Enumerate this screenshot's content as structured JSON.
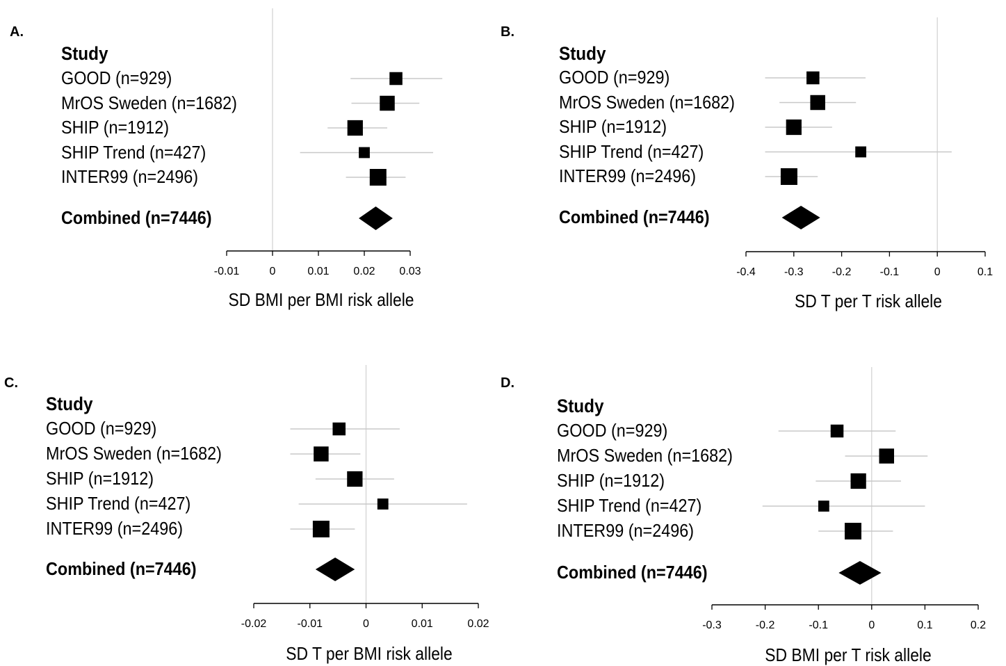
{
  "chart_data": [
    {
      "type": "forest",
      "panel_letter": "A.",
      "study_header": "Study",
      "xlabel": "SD BMI per BMI risk allele",
      "xlim": [
        -0.01,
        0.03
      ],
      "ticks": [
        -0.01,
        0,
        0.01,
        0.02,
        0.03
      ],
      "tick_labels": [
        "-0.01",
        "0",
        "0.01",
        "0.02",
        "0.03"
      ],
      "studies": [
        {
          "label": "GOOD (n=929)",
          "estimate": 0.0269,
          "ci": [
            0.017,
            0.037
          ],
          "n": 929
        },
        {
          "label": "MrOS Sweden (n=1682)",
          "estimate": 0.025,
          "ci": [
            0.0172,
            0.032
          ],
          "n": 1682
        },
        {
          "label": "SHIP (n=1912)",
          "estimate": 0.018,
          "ci": [
            0.012,
            0.025
          ],
          "n": 1912
        },
        {
          "label": "SHIP Trend (n=427)",
          "estimate": 0.02,
          "ci": [
            0.006,
            0.035
          ],
          "n": 427
        },
        {
          "label": "INTER99 (n=2496)",
          "estimate": 0.023,
          "ci": [
            0.016,
            0.029
          ],
          "n": 2496
        }
      ],
      "combined": {
        "label": "Combined (n=7446)",
        "estimate": 0.0225,
        "ci": [
          0.0188,
          0.0262
        ]
      }
    },
    {
      "type": "forest",
      "panel_letter": "B.",
      "study_header": "Study",
      "xlabel": "SD T per T risk allele",
      "xlim": [
        -0.4,
        0.1
      ],
      "ticks": [
        -0.4,
        -0.3,
        -0.2,
        -0.1,
        0,
        0.1
      ],
      "tick_labels": [
        "-0.4",
        "-0.3",
        "-0.2",
        "-0.1",
        "0",
        "0.1"
      ],
      "studies": [
        {
          "label": "GOOD (n=929)",
          "estimate": -0.26,
          "ci": [
            -0.36,
            -0.15
          ],
          "n": 929
        },
        {
          "label": "MrOS Sweden (n=1682)",
          "estimate": -0.25,
          "ci": [
            -0.33,
            -0.17
          ],
          "n": 1682
        },
        {
          "label": "SHIP (n=1912)",
          "estimate": -0.3,
          "ci": [
            -0.36,
            -0.22
          ],
          "n": 1912
        },
        {
          "label": "SHIP Trend (n=427)",
          "estimate": -0.16,
          "ci": [
            -0.36,
            0.03
          ],
          "n": 427
        },
        {
          "label": "INTER99 (n=2496)",
          "estimate": -0.31,
          "ci": [
            -0.36,
            -0.25
          ],
          "n": 2496
        }
      ],
      "combined": {
        "label": "Combined (n=7446)",
        "estimate": -0.285,
        "ci": [
          -0.325,
          -0.245
        ]
      }
    },
    {
      "type": "forest",
      "panel_letter": "C.",
      "study_header": "Study",
      "xlabel": "SD T per BMI risk allele",
      "xlim": [
        -0.02,
        0.02
      ],
      "ticks": [
        -0.02,
        -0.01,
        0,
        0.01,
        0.02
      ],
      "tick_labels": [
        "-0.02",
        "-0.01",
        "0",
        "0.01",
        "0.02"
      ],
      "studies": [
        {
          "label": "GOOD (n=929)",
          "estimate": -0.0048,
          "ci": [
            -0.0135,
            0.006
          ],
          "n": 929
        },
        {
          "label": "MrOS Sweden (n=1682)",
          "estimate": -0.008,
          "ci": [
            -0.0135,
            -0.001
          ],
          "n": 1682
        },
        {
          "label": "SHIP (n=1912)",
          "estimate": -0.002,
          "ci": [
            -0.009,
            0.005
          ],
          "n": 1912
        },
        {
          "label": "SHIP Trend (n=427)",
          "estimate": 0.003,
          "ci": [
            -0.012,
            0.018
          ],
          "n": 427
        },
        {
          "label": "INTER99 (n=2496)",
          "estimate": -0.008,
          "ci": [
            -0.0135,
            -0.002
          ],
          "n": 2496
        }
      ],
      "combined": {
        "label": "Combined (n=7446)",
        "estimate": -0.0055,
        "ci": [
          -0.009,
          -0.002
        ]
      }
    },
    {
      "type": "forest",
      "panel_letter": "D.",
      "study_header": "Study",
      "xlabel": "SD BMI per T risk allele",
      "xlim": [
        -0.3,
        0.2
      ],
      "ticks": [
        -0.3,
        -0.2,
        -0.1,
        0,
        0.1,
        0.2
      ],
      "tick_labels": [
        "-0.3",
        "-0.2",
        "-0.1",
        "0",
        "0.1",
        "0.2"
      ],
      "studies": [
        {
          "label": "GOOD (n=929)",
          "estimate": -0.065,
          "ci": [
            -0.175,
            0.045
          ],
          "n": 929
        },
        {
          "label": "MrOS Sweden (n=1682)",
          "estimate": 0.028,
          "ci": [
            -0.05,
            0.105
          ],
          "n": 1682
        },
        {
          "label": "SHIP (n=1912)",
          "estimate": -0.025,
          "ci": [
            -0.105,
            0.055
          ],
          "n": 1912
        },
        {
          "label": "SHIP Trend (n=427)",
          "estimate": -0.09,
          "ci": [
            -0.205,
            0.1
          ],
          "n": 427
        },
        {
          "label": "INTER99 (n=2496)",
          "estimate": -0.035,
          "ci": [
            -0.1,
            0.04
          ],
          "n": 2496
        }
      ],
      "combined": {
        "label": "Combined (n=7446)",
        "estimate": -0.022,
        "ci": [
          -0.062,
          0.018
        ]
      }
    }
  ]
}
